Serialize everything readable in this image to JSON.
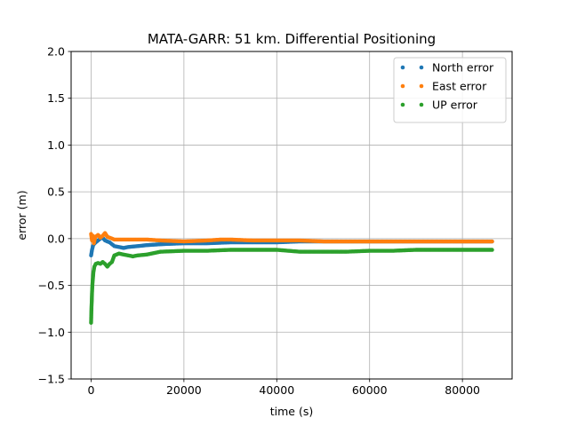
{
  "chart_data": {
    "type": "scatter",
    "title": "MATA-GARR: 51 km. Differential Positioning",
    "xlabel": "time (s)",
    "ylabel": "error (m)",
    "xlim": [
      -4300,
      90700
    ],
    "ylim": [
      -1.5,
      2.0
    ],
    "xticks": [
      0,
      20000,
      40000,
      60000,
      80000
    ],
    "yticks": [
      -1.5,
      -1.0,
      -0.5,
      0.0,
      0.5,
      1.0,
      1.5,
      2.0
    ],
    "xtick_labels": [
      "0",
      "20000",
      "40000",
      "60000",
      "80000"
    ],
    "ytick_labels": [
      "−1.5",
      "−1.0",
      "−0.5",
      "0.0",
      "0.5",
      "1.0",
      "1.5",
      "2.0"
    ],
    "grid": true,
    "legend_position": "top-right",
    "series": [
      {
        "name": "North error",
        "color": "#1f77b4",
        "points": [
          [
            0,
            -0.18
          ],
          [
            200,
            -0.12
          ],
          [
            400,
            -0.08
          ],
          [
            600,
            -0.06
          ],
          [
            800,
            -0.05
          ],
          [
            1000,
            -0.04
          ],
          [
            1500,
            -0.02
          ],
          [
            2000,
            0.0
          ],
          [
            2500,
            0.01
          ],
          [
            3000,
            -0.02
          ],
          [
            3500,
            -0.03
          ],
          [
            4000,
            -0.04
          ],
          [
            4500,
            -0.06
          ],
          [
            5000,
            -0.08
          ],
          [
            6000,
            -0.09
          ],
          [
            7000,
            -0.1
          ],
          [
            8000,
            -0.09
          ],
          [
            10000,
            -0.08
          ],
          [
            12000,
            -0.07
          ],
          [
            15000,
            -0.06
          ],
          [
            20000,
            -0.05
          ],
          [
            25000,
            -0.05
          ],
          [
            30000,
            -0.04
          ],
          [
            35000,
            -0.04
          ],
          [
            40000,
            -0.04
          ],
          [
            45000,
            -0.03
          ],
          [
            50000,
            -0.03
          ],
          [
            55000,
            -0.03
          ],
          [
            60000,
            -0.03
          ],
          [
            65000,
            -0.03
          ],
          [
            70000,
            -0.03
          ],
          [
            75000,
            -0.03
          ],
          [
            80000,
            -0.03
          ],
          [
            86400,
            -0.03
          ]
        ]
      },
      {
        "name": "East error",
        "color": "#ff7f0e",
        "points": [
          [
            0,
            0.05
          ],
          [
            200,
            -0.02
          ],
          [
            400,
            0.03
          ],
          [
            600,
            -0.05
          ],
          [
            800,
            0.0
          ],
          [
            1000,
            0.02
          ],
          [
            1500,
            0.04
          ],
          [
            2000,
            0.01
          ],
          [
            2500,
            0.03
          ],
          [
            3000,
            0.06
          ],
          [
            3500,
            0.02
          ],
          [
            4000,
            0.01
          ],
          [
            5000,
            -0.01
          ],
          [
            6000,
            -0.01
          ],
          [
            8000,
            -0.01
          ],
          [
            10000,
            -0.01
          ],
          [
            12000,
            -0.01
          ],
          [
            15000,
            -0.02
          ],
          [
            20000,
            -0.03
          ],
          [
            25000,
            -0.02
          ],
          [
            28000,
            -0.01
          ],
          [
            30000,
            -0.01
          ],
          [
            35000,
            -0.02
          ],
          [
            40000,
            -0.02
          ],
          [
            45000,
            -0.02
          ],
          [
            50000,
            -0.03
          ],
          [
            55000,
            -0.03
          ],
          [
            60000,
            -0.03
          ],
          [
            65000,
            -0.03
          ],
          [
            70000,
            -0.03
          ],
          [
            75000,
            -0.03
          ],
          [
            80000,
            -0.03
          ],
          [
            86400,
            -0.03
          ]
        ]
      },
      {
        "name": "UP error",
        "color": "#2ca02c",
        "points": [
          [
            0,
            -0.9
          ],
          [
            50,
            -0.8
          ],
          [
            100,
            -0.72
          ],
          [
            150,
            -0.66
          ],
          [
            200,
            -0.58
          ],
          [
            300,
            -0.48
          ],
          [
            400,
            -0.42
          ],
          [
            500,
            -0.36
          ],
          [
            700,
            -0.3
          ],
          [
            1000,
            -0.27
          ],
          [
            1500,
            -0.26
          ],
          [
            2000,
            -0.27
          ],
          [
            2500,
            -0.25
          ],
          [
            3000,
            -0.27
          ],
          [
            3500,
            -0.3
          ],
          [
            4000,
            -0.27
          ],
          [
            4500,
            -0.25
          ],
          [
            5000,
            -0.18
          ],
          [
            6000,
            -0.16
          ],
          [
            7000,
            -0.17
          ],
          [
            8000,
            -0.18
          ],
          [
            9000,
            -0.19
          ],
          [
            10000,
            -0.18
          ],
          [
            12000,
            -0.17
          ],
          [
            15000,
            -0.14
          ],
          [
            20000,
            -0.13
          ],
          [
            25000,
            -0.13
          ],
          [
            30000,
            -0.12
          ],
          [
            35000,
            -0.12
          ],
          [
            40000,
            -0.12
          ],
          [
            45000,
            -0.14
          ],
          [
            50000,
            -0.14
          ],
          [
            55000,
            -0.14
          ],
          [
            60000,
            -0.13
          ],
          [
            65000,
            -0.13
          ],
          [
            70000,
            -0.12
          ],
          [
            75000,
            -0.12
          ],
          [
            80000,
            -0.12
          ],
          [
            86400,
            -0.12
          ]
        ]
      }
    ]
  }
}
